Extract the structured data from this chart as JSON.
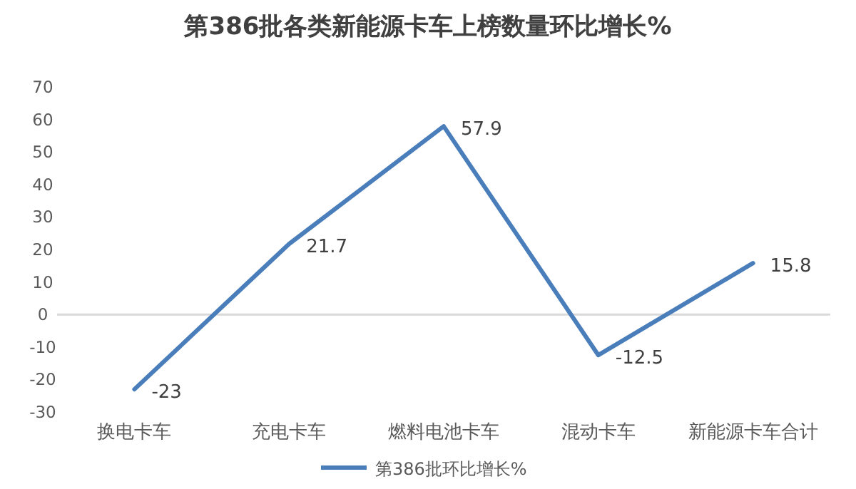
{
  "chart_data": {
    "type": "line",
    "title": "第386批各类新能源卡车上榜数量环比增长%",
    "categories": [
      "换电卡车",
      "充电卡车",
      "燃料电池卡车",
      "混动卡车",
      "新能源卡车合计"
    ],
    "series": [
      {
        "name": "第386批环比增长%",
        "color": "#4a7ebb",
        "values": [
          -23,
          21.7,
          57.9,
          -12.5,
          15.8
        ]
      }
    ],
    "ylim": [
      -30,
      70
    ],
    "yticks": [
      -30,
      -20,
      -10,
      0,
      10,
      20,
      30,
      40,
      50,
      60,
      70
    ],
    "grid": false,
    "ref_lines": [
      {
        "axis": "y",
        "value": 0,
        "color": "#d9d9d9"
      }
    ],
    "legend": "bottom",
    "data_labels": true,
    "marker": "none",
    "line_style": "solid"
  }
}
